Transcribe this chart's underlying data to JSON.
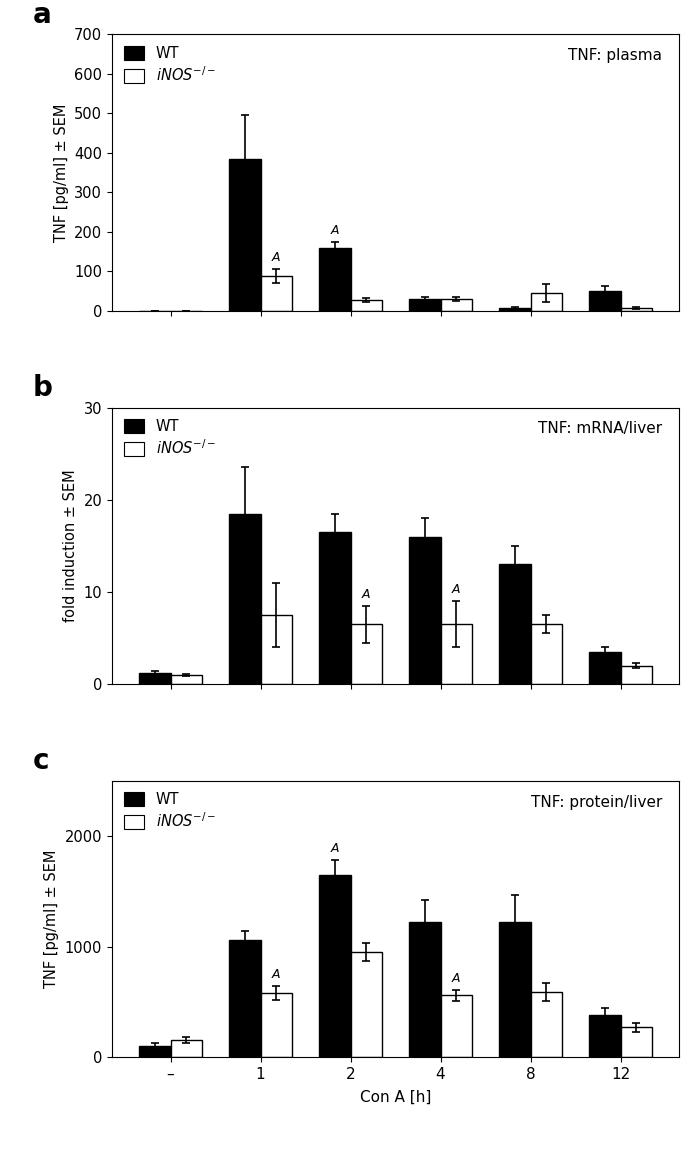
{
  "panel_a": {
    "title": "TNF: plasma",
    "ylabel": "TNF [pg/ml] ± SEM",
    "ylim": [
      0,
      700
    ],
    "yticks": [
      0,
      100,
      200,
      300,
      400,
      500,
      600,
      700
    ],
    "categories": [
      "–",
      "1",
      "2",
      "4",
      "8",
      "12"
    ],
    "wt_values": [
      0,
      385,
      160,
      30,
      8,
      50
    ],
    "wt_errors": [
      0,
      110,
      15,
      5,
      3,
      12
    ],
    "ko_values": [
      0,
      88,
      28,
      30,
      45,
      8
    ],
    "ko_errors": [
      0,
      18,
      5,
      5,
      22,
      3
    ],
    "A_labels_ko": [
      false,
      true,
      false,
      false,
      false,
      false
    ],
    "A_labels_wt": [
      false,
      false,
      true,
      false,
      false,
      false
    ]
  },
  "panel_b": {
    "title": "TNF: mRNA/liver",
    "ylabel": "fold induction ± SEM",
    "ylim": [
      0,
      30
    ],
    "yticks": [
      0,
      10,
      20,
      30
    ],
    "categories": [
      "–",
      "1",
      "2",
      "4",
      "8",
      "12"
    ],
    "wt_values": [
      1.2,
      18.5,
      16.5,
      16.0,
      13.0,
      3.5
    ],
    "wt_errors": [
      0.2,
      5.0,
      2.0,
      2.0,
      2.0,
      0.5
    ],
    "ko_values": [
      1.0,
      7.5,
      6.5,
      6.5,
      6.5,
      2.0
    ],
    "ko_errors": [
      0.1,
      3.5,
      2.0,
      2.5,
      1.0,
      0.3
    ],
    "A_labels_ko": [
      false,
      false,
      true,
      true,
      false,
      false
    ],
    "A_labels_wt": [
      false,
      false,
      false,
      false,
      false,
      false
    ]
  },
  "panel_c": {
    "title": "TNF: protein/liver",
    "ylabel": "TNF [pg/ml] ± SEM",
    "ylim": [
      0,
      2500
    ],
    "yticks": [
      0,
      1000,
      2000
    ],
    "categories": [
      "–",
      "1",
      "2",
      "4",
      "8",
      "12"
    ],
    "wt_values": [
      100,
      1060,
      1650,
      1220,
      1220,
      380
    ],
    "wt_errors": [
      25,
      80,
      130,
      200,
      250,
      60
    ],
    "ko_values": [
      155,
      580,
      950,
      560,
      590,
      270
    ],
    "ko_errors": [
      30,
      60,
      80,
      50,
      80,
      40
    ],
    "A_labels_ko": [
      false,
      true,
      false,
      true,
      false,
      false
    ],
    "A_labels_wt": [
      false,
      false,
      true,
      false,
      false,
      false
    ]
  },
  "bar_width": 0.35,
  "wt_color": "#000000",
  "ko_color": "#ffffff",
  "ko_edgecolor": "#000000",
  "xlabel": "Con A [h]",
  "legend_wt": "WT",
  "panel_labels": [
    "a",
    "b",
    "c"
  ],
  "figure_bg": "#ffffff"
}
